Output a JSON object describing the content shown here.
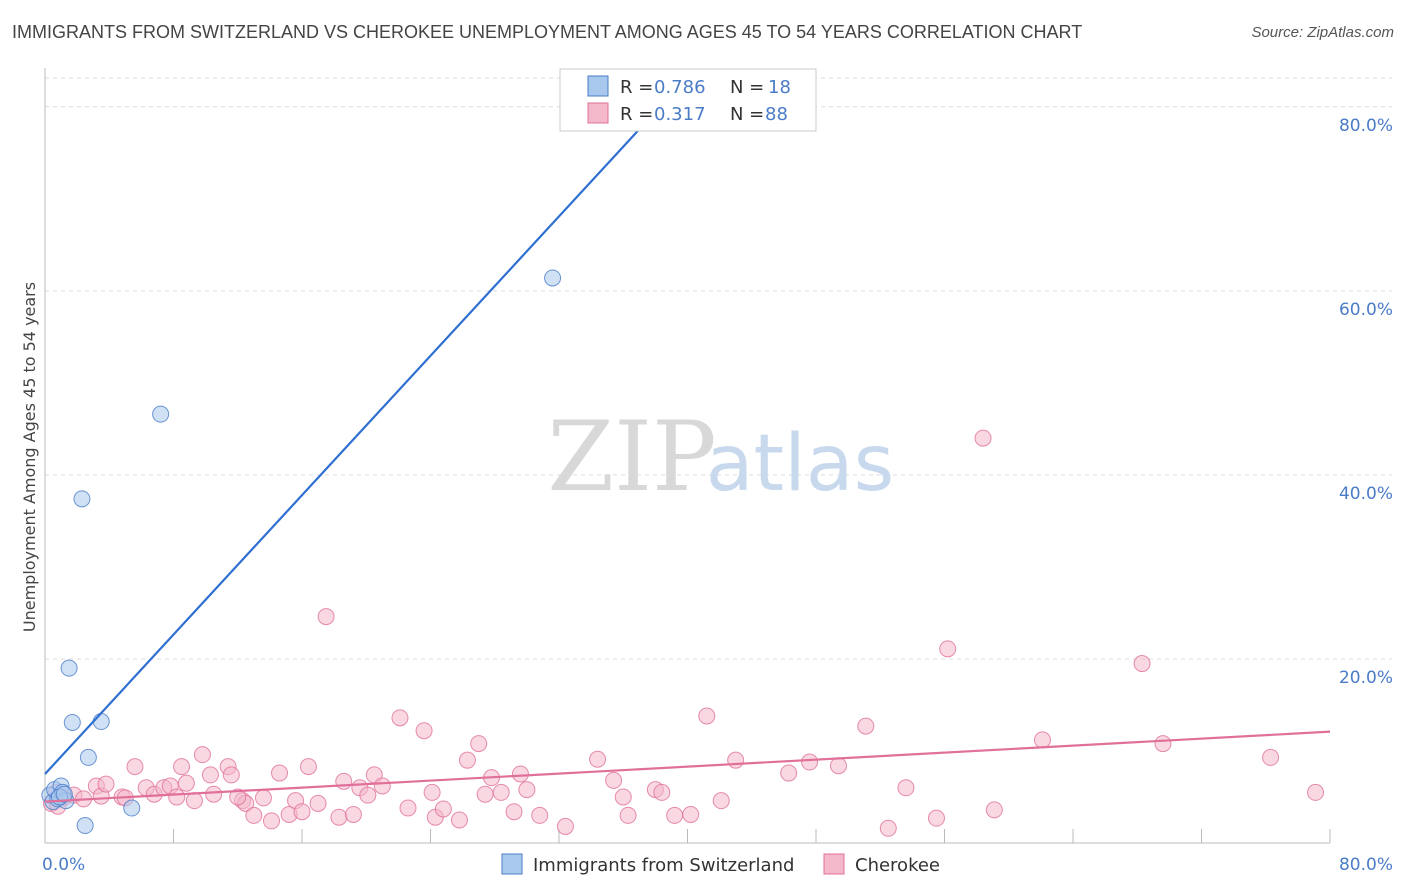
{
  "title": "IMMIGRANTS FROM SWITZERLAND VS CHEROKEE UNEMPLOYMENT AMONG AGES 45 TO 54 YEARS CORRELATION CHART",
  "source": "Source: ZipAtlas.com",
  "colors": {
    "blue": "#4a7cc7",
    "blue_fill": "#a9c8ee",
    "pink": "#e0709a",
    "pink_fill": "#f4b8cb",
    "grid": "#dddddd"
  },
  "watermark": {
    "zip": "ZIP",
    "atlas": "atlas"
  },
  "legend": {
    "r_label": "R =",
    "n_label": "N =",
    "rows": [
      {
        "r": "0.786",
        "n": "18"
      },
      {
        "r": "0.317",
        "n": "88"
      }
    ]
  },
  "chart_data": {
    "type": "scatter",
    "title": "IMMIGRANTS FROM SWITZERLAND VS CHEROKEE UNEMPLOYMENT AMONG AGES 45 TO 54 YEARS CORRELATION CHART",
    "xlabel": "",
    "ylabel": "Unemployment Among Ages 45 to 54 years",
    "xlim": [
      0,
      80
    ],
    "ylim": [
      0,
      84
    ],
    "x_tick_labels": [
      "0.0%",
      "80.0%"
    ],
    "y_tick_labels": [
      "20.0%",
      "40.0%",
      "60.0%",
      "80.0%"
    ],
    "y_ticks": [
      20,
      40,
      60,
      80
    ],
    "grid": true,
    "legend_position": "top-center",
    "series": [
      {
        "name": "Immigrants from Switzerland",
        "color": "#4a7cc7",
        "points": [
          [
            0.3,
            5.2
          ],
          [
            0.5,
            4.5
          ],
          [
            0.6,
            5.8
          ],
          [
            0.8,
            4.8
          ],
          [
            1.0,
            6.2
          ],
          [
            1.1,
            5.5
          ],
          [
            1.3,
            4.6
          ],
          [
            1.5,
            19.0
          ],
          [
            1.7,
            13.1
          ],
          [
            2.3,
            37.4
          ],
          [
            2.5,
            1.9
          ],
          [
            2.7,
            9.3
          ],
          [
            3.5,
            13.2
          ],
          [
            5.4,
            3.8
          ],
          [
            7.2,
            46.6
          ],
          [
            31.6,
            61.4
          ],
          [
            0.9,
            5.0
          ],
          [
            1.2,
            5.3
          ]
        ],
        "trend": {
          "x": [
            0,
            40.4
          ],
          "y": [
            7.5,
            84
          ]
        }
      },
      {
        "name": "Cherokee",
        "color": "#e0709a",
        "points": [
          [
            0.4,
            4.3
          ],
          [
            0.7,
            5.5
          ],
          [
            1.2,
            5.0
          ],
          [
            1.8,
            5.2
          ],
          [
            2.4,
            4.8
          ],
          [
            3.2,
            6.2
          ],
          [
            3.5,
            5.1
          ],
          [
            3.8,
            6.4
          ],
          [
            4.8,
            5.0
          ],
          [
            5.0,
            4.9
          ],
          [
            5.6,
            8.3
          ],
          [
            6.3,
            6.0
          ],
          [
            6.8,
            5.3
          ],
          [
            7.4,
            6.0
          ],
          [
            7.8,
            6.2
          ],
          [
            8.2,
            5.0
          ],
          [
            8.5,
            8.3
          ],
          [
            8.8,
            6.5
          ],
          [
            9.3,
            4.6
          ],
          [
            9.8,
            9.6
          ],
          [
            10.3,
            7.4
          ],
          [
            10.5,
            5.3
          ],
          [
            11.4,
            8.3
          ],
          [
            11.6,
            7.4
          ],
          [
            12.3,
            4.6
          ],
          [
            12.5,
            4.3
          ],
          [
            13.0,
            3.0
          ],
          [
            13.6,
            4.9
          ],
          [
            14.1,
            2.4
          ],
          [
            14.6,
            7.6
          ],
          [
            15.2,
            3.1
          ],
          [
            15.6,
            4.6
          ],
          [
            16.0,
            3.4
          ],
          [
            16.4,
            8.3
          ],
          [
            17.0,
            4.3
          ],
          [
            17.5,
            24.6
          ],
          [
            18.3,
            2.8
          ],
          [
            18.6,
            6.7
          ],
          [
            19.2,
            3.1
          ],
          [
            19.6,
            6.0
          ],
          [
            20.1,
            5.2
          ],
          [
            20.5,
            7.4
          ],
          [
            21.0,
            6.2
          ],
          [
            22.1,
            13.6
          ],
          [
            22.6,
            3.8
          ],
          [
            23.6,
            12.2
          ],
          [
            24.1,
            5.5
          ],
          [
            24.3,
            2.8
          ],
          [
            24.8,
            3.7
          ],
          [
            25.8,
            2.5
          ],
          [
            26.3,
            9.0
          ],
          [
            27.0,
            10.8
          ],
          [
            27.4,
            5.3
          ],
          [
            27.8,
            7.1
          ],
          [
            28.4,
            5.5
          ],
          [
            29.2,
            3.4
          ],
          [
            29.6,
            7.5
          ],
          [
            30.0,
            5.8
          ],
          [
            30.8,
            3.0
          ],
          [
            32.4,
            1.8
          ],
          [
            34.4,
            9.1
          ],
          [
            35.4,
            6.8
          ],
          [
            36.0,
            5.0
          ],
          [
            36.3,
            3.0
          ],
          [
            38.0,
            5.8
          ],
          [
            38.4,
            5.5
          ],
          [
            39.2,
            3.0
          ],
          [
            40.2,
            3.1
          ],
          [
            41.2,
            13.8
          ],
          [
            42.1,
            4.6
          ],
          [
            43.0,
            9.0
          ],
          [
            46.3,
            7.6
          ],
          [
            47.6,
            8.8
          ],
          [
            49.4,
            8.4
          ],
          [
            51.1,
            12.7
          ],
          [
            52.5,
            1.6
          ],
          [
            53.6,
            6.0
          ],
          [
            55.5,
            2.7
          ],
          [
            56.2,
            21.1
          ],
          [
            58.4,
            44.0
          ],
          [
            59.1,
            3.6
          ],
          [
            62.1,
            11.2
          ],
          [
            68.3,
            19.5
          ],
          [
            69.6,
            10.8
          ],
          [
            76.3,
            9.3
          ],
          [
            79.1,
            5.5
          ],
          [
            0.8,
            4.0
          ],
          [
            12.0,
            5.0
          ]
        ],
        "trend": {
          "x": [
            0,
            80
          ],
          "y": [
            4.5,
            12.1
          ]
        }
      }
    ]
  },
  "bottom_legend": [
    {
      "label": "Immigrants from Switzerland"
    },
    {
      "label": "Cherokee"
    }
  ]
}
